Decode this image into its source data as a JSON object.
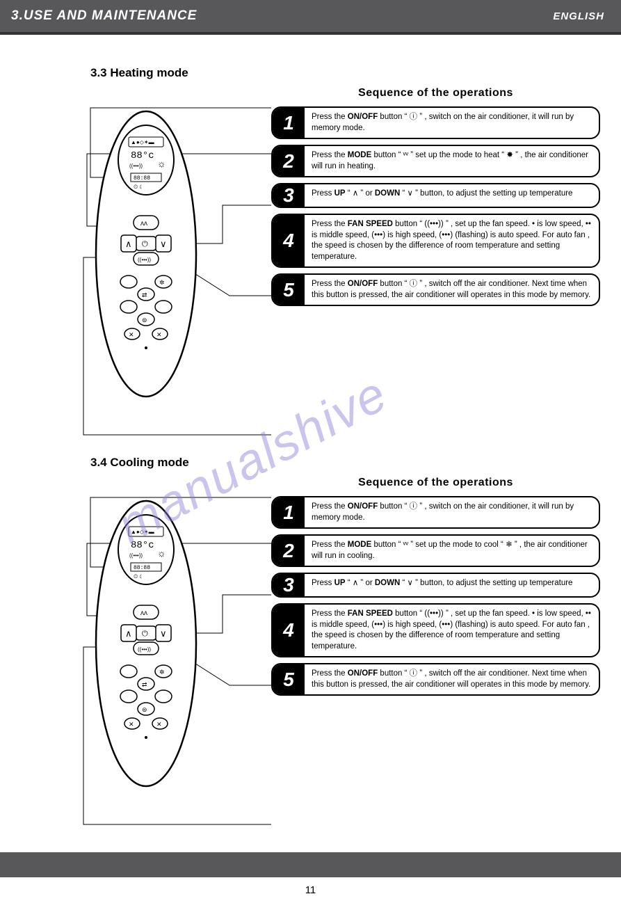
{
  "header": {
    "title": "3.USE AND MAINTENANCE",
    "lang": "ENGLISH"
  },
  "watermark": "manualshive",
  "page_number": "11",
  "sections": [
    {
      "id": "heating",
      "title": "3.3  Heating mode",
      "seq_title": "Sequence of the operations",
      "steps": [
        {
          "n": "1",
          "html": "Press the <b>ON/OFF</b> button “ <span class='glyph'>ⓘ</span> ” , switch on the air conditioner, it will run by memory mode."
        },
        {
          "n": "2",
          "html": "Press the <b>MODE</b> button “ <span class='glyph'>ᵛᵛ</span> ” set up the mode to heat “ <span class='glyph'>✸</span> ” , the air conditioner will run in heating."
        },
        {
          "n": "3",
          "html": "Press <b>UP</b> “ <span class='glyph'>∧</span> ” or <b>DOWN</b> “ <span class='glyph'>∨</span> ” button, to adjust the setting up temperature"
        },
        {
          "n": "4",
          "html": "Press the <b>FAN SPEED</b> button “ <span class='glyph'>((•••))</span> ” , set up the fan speed. <span class='glyph'>•</span> is low speed, <span class='glyph'>••</span> is middle speed, <span class='glyph'>(•••)</span> is high speed, <span class='glyph'>(•••)</span> (flashing) is auto speed. For auto fan , the speed is chosen by the difference of room temperature and setting temperature."
        },
        {
          "n": "5",
          "html": "Press the <b>ON/OFF</b> button “ <span class='glyph'>ⓘ</span> ” , switch off the air conditioner. Next time when this button is pressed, the air conditioner will operates in this mode by memory."
        }
      ]
    },
    {
      "id": "cooling",
      "title": "3.4  Cooling mode",
      "seq_title": "Sequence of the operations",
      "steps": [
        {
          "n": "1",
          "html": "Press the <b>ON/OFF</b> button “ <span class='glyph'>ⓘ</span> ” , switch on the air conditioner, it will run by memory mode."
        },
        {
          "n": "2",
          "html": "Press the <b>MODE</b> button “ <span class='glyph'>ᵛᵛ</span> ” set up the mode to cool “ <span class='glyph'>❄</span> ” , the air conditioner will run in cooling."
        },
        {
          "n": "3",
          "html": "Press <b>UP</b> “ <span class='glyph'>∧</span> ” or <b>DOWN</b> “ <span class='glyph'>∨</span> ” button, to adjust the setting up temperature"
        },
        {
          "n": "4",
          "html": "Press the <b>FAN SPEED</b> button “ <span class='glyph'>((•••))</span> ” , set up the fan speed. <span class='glyph'>•</span> is low speed, <span class='glyph'>••</span> is middle speed, <span class='glyph'>(•••)</span> is high speed, <span class='glyph'>(•••)</span> (flashing) is auto speed. For auto fan , the speed is chosen by the difference of room temperature and setting temperature."
        },
        {
          "n": "5",
          "html": "Press the <b>ON/OFF</b> button “ <span class='glyph'>ⓘ</span> ” , switch off the air conditioner. Next time when this button is pressed, the air conditioner will operates in this mode by memory."
        }
      ]
    }
  ],
  "colors": {
    "header_bg": "#58585a",
    "black": "#000000",
    "white": "#ffffff",
    "watermark": "#8a7fd8"
  }
}
